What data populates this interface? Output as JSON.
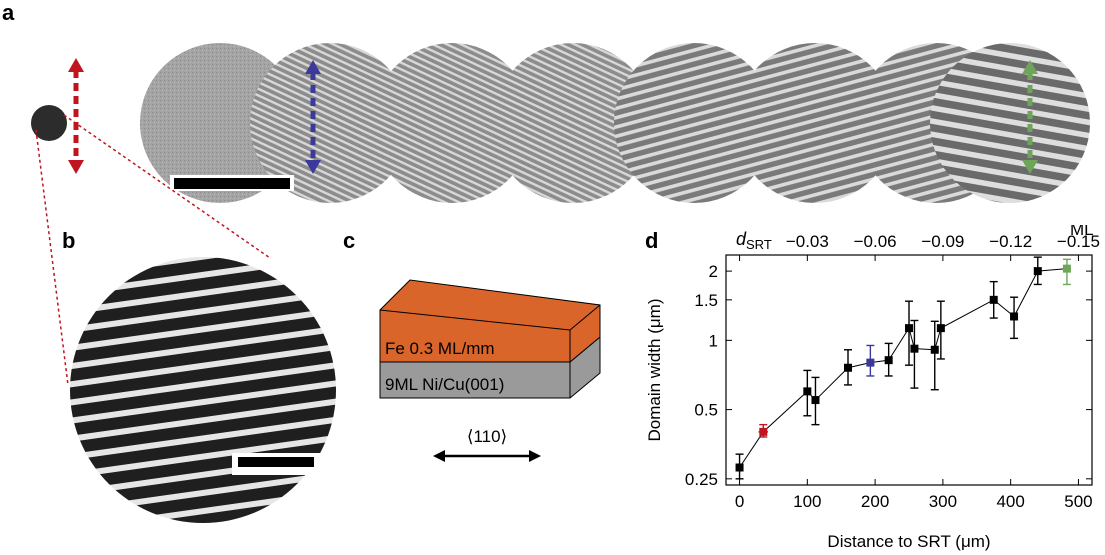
{
  "panels": {
    "a": {
      "label": "a",
      "micrograph_count": 8
    },
    "b": {
      "label": "b"
    },
    "c": {
      "label": "c",
      "top_layer_label": "Fe 0.3 ML/mm",
      "bottom_layer_label": "9ML Ni/Cu(001)",
      "direction_label": "⟨110⟩",
      "top_color": "#d9652b",
      "bottom_color": "#9a9a9a"
    },
    "d": {
      "label": "d"
    }
  },
  "colors": {
    "red_marker": "#c0141e",
    "blue_marker": "#3b3a9a",
    "green_marker": "#6fa55a",
    "black": "#000000"
  },
  "chart_data": {
    "type": "scatter",
    "x_label": "Distance to SRT (μm)",
    "y_label": "Domain width (μm)",
    "top_axis_label_main": "d",
    "top_axis_label_sub": "SRT",
    "top_axis_unit": "ML",
    "top_ticks": [
      "−0.03",
      "−0.06",
      "−0.09",
      "−0.12",
      "−0.15"
    ],
    "top_tick_positions_um": [
      100,
      200,
      300,
      400,
      500
    ],
    "x_ticks": [
      "0",
      "100",
      "200",
      "300",
      "400",
      "500"
    ],
    "y_ticks": [
      "0.25",
      "0.5",
      "1",
      "1.5",
      "2"
    ],
    "y_tick_values": [
      0.25,
      0.5,
      1,
      1.5,
      2
    ],
    "xlim": [
      -20,
      520
    ],
    "ylim": [
      0.235,
      2.35
    ],
    "y_scale": "log",
    "points": [
      {
        "x": 0,
        "y": 0.28,
        "yerr_low": 0.03,
        "yerr_high": 0.04,
        "color": "black"
      },
      {
        "x": 35,
        "y": 0.4,
        "yerr_low": 0.02,
        "yerr_high": 0.03,
        "xerr": 7,
        "color": "red"
      },
      {
        "x": 100,
        "y": 0.6,
        "yerr_low": 0.13,
        "yerr_high": 0.14,
        "color": "black"
      },
      {
        "x": 112,
        "y": 0.55,
        "yerr_low": 0.12,
        "yerr_high": 0.14,
        "color": "black"
      },
      {
        "x": 160,
        "y": 0.76,
        "yerr_low": 0.12,
        "yerr_high": 0.15,
        "color": "black"
      },
      {
        "x": 193,
        "y": 0.8,
        "yerr_low": 0.1,
        "yerr_high": 0.15,
        "color": "blue"
      },
      {
        "x": 220,
        "y": 0.82,
        "yerr_low": 0.12,
        "yerr_high": 0.15,
        "color": "black"
      },
      {
        "x": 250,
        "y": 1.13,
        "yerr_low": 0.35,
        "yerr_high": 0.35,
        "color": "black"
      },
      {
        "x": 258,
        "y": 0.92,
        "yerr_low": 0.3,
        "yerr_high": 0.3,
        "color": "black"
      },
      {
        "x": 288,
        "y": 0.91,
        "yerr_low": 0.3,
        "yerr_high": 0.3,
        "color": "black"
      },
      {
        "x": 297,
        "y": 1.13,
        "yerr_low": 0.3,
        "yerr_high": 0.35,
        "color": "black"
      },
      {
        "x": 375,
        "y": 1.5,
        "yerr_low": 0.25,
        "yerr_high": 0.3,
        "color": "black"
      },
      {
        "x": 405,
        "y": 1.27,
        "yerr_low": 0.25,
        "yerr_high": 0.27,
        "color": "black"
      },
      {
        "x": 440,
        "y": 2.0,
        "yerr_low": 0.25,
        "yerr_high": 0.3,
        "color": "black"
      },
      {
        "x": 483,
        "y": 2.05,
        "yerr_low": 0.3,
        "yerr_high": 0.2,
        "color": "green"
      }
    ]
  }
}
